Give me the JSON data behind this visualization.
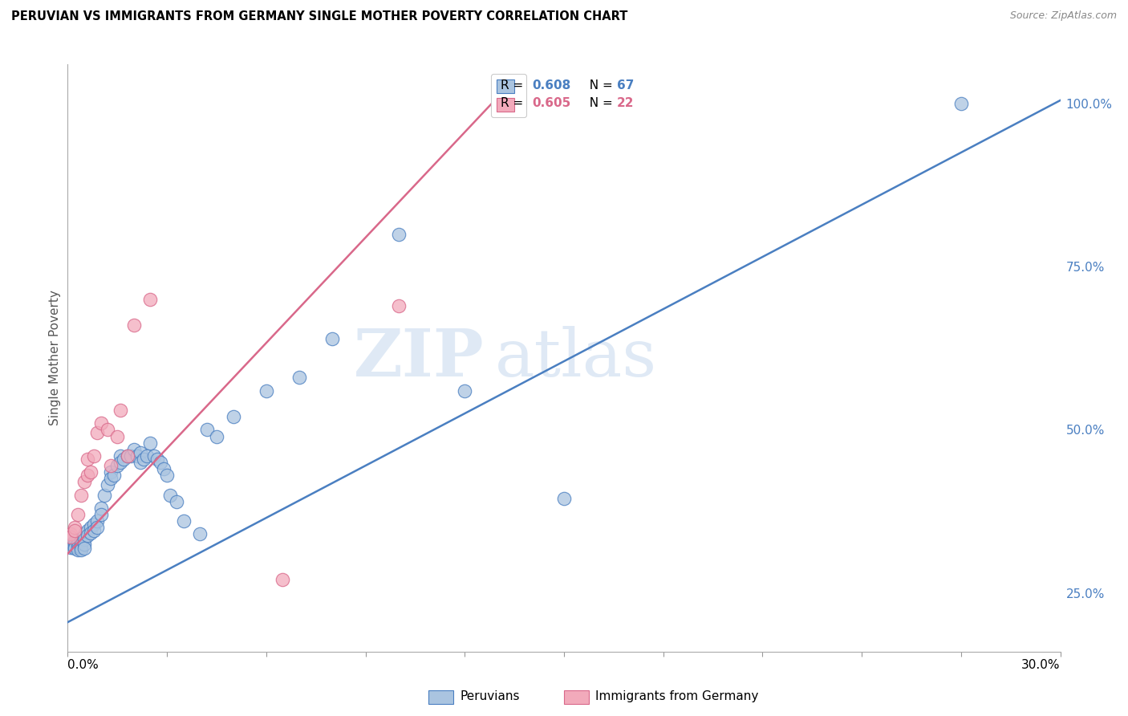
{
  "title": "PERUVIAN VS IMMIGRANTS FROM GERMANY SINGLE MOTHER POVERTY CORRELATION CHART",
  "source": "Source: ZipAtlas.com",
  "ylabel": "Single Mother Poverty",
  "right_yticks": [
    "25.0%",
    "50.0%",
    "75.0%",
    "100.0%"
  ],
  "right_ytick_vals": [
    0.25,
    0.5,
    0.75,
    1.0
  ],
  "xlim": [
    0.0,
    0.3
  ],
  "ylim": [
    0.16,
    1.06
  ],
  "blue_color": "#aac4e0",
  "pink_color": "#f2aabb",
  "blue_line_color": "#4a7fc1",
  "pink_line_color": "#d9688a",
  "watermark_zip": "ZIP",
  "watermark_atlas": "atlas",
  "blue_scatter_x": [
    0.001,
    0.001,
    0.001,
    0.002,
    0.002,
    0.002,
    0.002,
    0.002,
    0.003,
    0.003,
    0.003,
    0.003,
    0.004,
    0.004,
    0.004,
    0.004,
    0.005,
    0.005,
    0.005,
    0.005,
    0.006,
    0.006,
    0.007,
    0.007,
    0.008,
    0.008,
    0.009,
    0.009,
    0.01,
    0.01,
    0.011,
    0.012,
    0.013,
    0.013,
    0.014,
    0.015,
    0.016,
    0.016,
    0.017,
    0.018,
    0.019,
    0.02,
    0.021,
    0.022,
    0.022,
    0.023,
    0.024,
    0.025,
    0.026,
    0.027,
    0.028,
    0.029,
    0.03,
    0.031,
    0.033,
    0.035,
    0.04,
    0.042,
    0.045,
    0.05,
    0.06,
    0.07,
    0.08,
    0.1,
    0.12,
    0.15,
    0.27
  ],
  "blue_scatter_y": [
    0.335,
    0.325,
    0.32,
    0.33,
    0.328,
    0.325,
    0.32,
    0.318,
    0.33,
    0.325,
    0.32,
    0.316,
    0.33,
    0.325,
    0.32,
    0.316,
    0.34,
    0.332,
    0.325,
    0.318,
    0.345,
    0.338,
    0.35,
    0.342,
    0.355,
    0.345,
    0.36,
    0.35,
    0.38,
    0.37,
    0.4,
    0.415,
    0.435,
    0.425,
    0.43,
    0.445,
    0.46,
    0.45,
    0.455,
    0.46,
    0.46,
    0.47,
    0.46,
    0.465,
    0.45,
    0.455,
    0.46,
    0.48,
    0.46,
    0.455,
    0.45,
    0.44,
    0.43,
    0.4,
    0.39,
    0.36,
    0.34,
    0.5,
    0.49,
    0.52,
    0.56,
    0.58,
    0.64,
    0.8,
    0.56,
    0.395,
    1.0
  ],
  "pink_scatter_x": [
    0.001,
    0.001,
    0.002,
    0.002,
    0.003,
    0.004,
    0.005,
    0.006,
    0.006,
    0.007,
    0.008,
    0.009,
    0.01,
    0.012,
    0.013,
    0.015,
    0.016,
    0.018,
    0.02,
    0.025,
    0.065,
    0.1
  ],
  "pink_scatter_y": [
    0.34,
    0.335,
    0.35,
    0.345,
    0.37,
    0.4,
    0.42,
    0.455,
    0.43,
    0.435,
    0.46,
    0.495,
    0.51,
    0.5,
    0.445,
    0.49,
    0.53,
    0.46,
    0.66,
    0.7,
    0.27,
    0.69
  ],
  "blue_line_x": [
    0.0,
    0.3
  ],
  "blue_line_y": [
    0.205,
    1.005
  ],
  "pink_line_x": [
    0.0,
    0.13
  ],
  "pink_line_y": [
    0.31,
    1.01
  ],
  "background_color": "#ffffff",
  "grid_color": "#cccccc"
}
